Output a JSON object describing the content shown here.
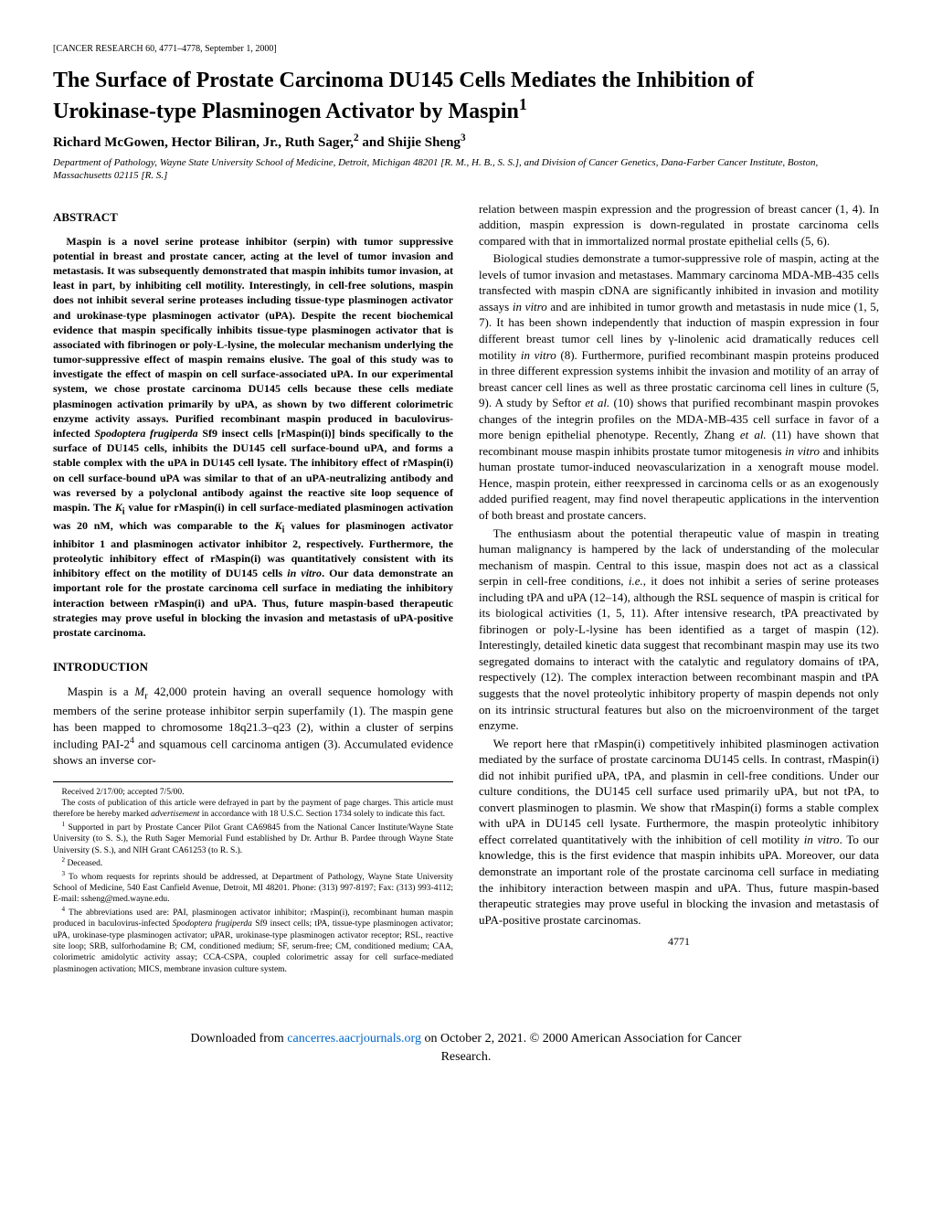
{
  "header_ref": "[CANCER RESEARCH 60, 4771–4778, September 1, 2000]",
  "title_line1": "The Surface of Prostate Carcinoma DU145 Cells Mediates the Inhibition of",
  "title_line2": "Urokinase-type Plasminogen Activator by Maspin",
  "title_sup": "1",
  "authors_html": "Richard McGowen, Hector Biliran, Jr., Ruth Sager,<sup>2</sup> and Shijie Sheng<sup>3</sup>",
  "affiliation": "Department of Pathology, Wayne State University School of Medicine, Detroit, Michigan 48201 [R. M., H. B., S. S.], and Division of Cancer Genetics, Dana-Farber Cancer Institute, Boston, Massachusetts 02115 [R. S.]",
  "abstract_heading": "ABSTRACT",
  "abstract_html": "Maspin is a novel serine protease inhibitor (serpin) with tumor suppressive potential in breast and prostate cancer, acting at the level of tumor invasion and metastasis. It was subsequently demonstrated that maspin inhibits tumor invasion, at least in part, by inhibiting cell motility. Interestingly, in cell-free solutions, maspin does not inhibit several serine proteases including tissue-type plasminogen activator and urokinase-type plasminogen activator (uPA). Despite the recent biochemical evidence that maspin specifically inhibits tissue-type plasminogen activator that is associated with fibrinogen or poly-L-lysine, the molecular mechanism underlying the tumor-suppressive effect of maspin remains elusive. The goal of this study was to investigate the effect of maspin on cell surface-associated uPA. In our experimental system, we chose prostate carcinoma DU145 cells because these cells mediate plasminogen activation primarily by uPA, as shown by two different colorimetric enzyme activity assays. Purified recombinant maspin produced in baculovirus-infected <i>Spodoptera frugiperda</i> Sf9 insect cells [rMaspin(i)] binds specifically to the surface of DU145 cells, inhibits the DU145 cell surface-bound uPA, and forms a stable complex with the uPA in DU145 cell lysate. The inhibitory effect of rMaspin(i) on cell surface-bound uPA was similar to that of an uPA-neutralizing antibody and was reversed by a polyclonal antibody against the reactive site loop sequence of maspin. The <i>K</i><sub>i</sub> value for rMaspin(i) in cell surface-mediated plasminogen activation was 20 nM, which was comparable to the <i>K</i><sub>i</sub> values for plasminogen activator inhibitor 1 and plasminogen activator inhibitor 2, respectively. Furthermore, the proteolytic inhibitory effect of rMaspin(i) was quantitatively consistent with its inhibitory effect on the motility of DU145 cells <i>in vitro</i>. Our data demonstrate an important role for the prostate carcinoma cell surface in mediating the inhibitory interaction between rMaspin(i) and uPA. Thus, future maspin-based therapeutic strategies may prove useful in blocking the invasion and metastasis of uPA-positive prostate carcinoma.",
  "introduction_heading": "INTRODUCTION",
  "intro_p1_html": "Maspin is a <i>M</i><sub>r</sub> 42,000 protein having an overall sequence homology with members of the serine protease inhibitor serpin superfamily (1). The maspin gene has been mapped to chromosome 18q21.3–q23 (2), within a cluster of serpins including PAI-2<sup>4</sup> and squamous cell carcinoma antigen (3). Accumulated evidence shows an inverse cor-",
  "right_p1_html": "relation between maspin expression and the progression of breast cancer (1, 4). In addition, maspin expression is down-regulated in prostate carcinoma cells compared with that in immortalized normal prostate epithelial cells (5, 6).",
  "right_p2_html": "Biological studies demonstrate a tumor-suppressive role of maspin, acting at the levels of tumor invasion and metastases. Mammary carcinoma MDA-MB-435 cells transfected with maspin cDNA are significantly inhibited in invasion and motility assays <i>in vitro</i> and are inhibited in tumor growth and metastasis in nude mice (1, 5, 7). It has been shown independently that induction of maspin expression in four different breast tumor cell lines by γ-linolenic acid dramatically reduces cell motility <i>in vitro</i> (8). Furthermore, purified recombinant maspin proteins produced in three different expression systems inhibit the invasion and motility of an array of breast cancer cell lines as well as three prostatic carcinoma cell lines in culture (5, 9). A study by Seftor <i>et al.</i> (10) shows that purified recombinant maspin provokes changes of the integrin profiles on the MDA-MB-435 cell surface in favor of a more benign epithelial phenotype. Recently, Zhang <i>et al.</i> (11) have shown that recombinant mouse maspin inhibits prostate tumor mitogenesis <i>in vitro</i> and inhibits human prostate tumor-induced neovascularization in a xenograft mouse model. Hence, maspin protein, either reexpressed in carcinoma cells or as an exogenously added purified reagent, may find novel therapeutic applications in the intervention of both breast and prostate cancers.",
  "right_p3_html": "The enthusiasm about the potential therapeutic value of maspin in treating human malignancy is hampered by the lack of understanding of the molecular mechanism of maspin. Central to this issue, maspin does not act as a classical serpin in cell-free conditions, <i>i.e.</i>, it does not inhibit a series of serine proteases including tPA and uPA (12–14), although the RSL sequence of maspin is critical for its biological activities (1, 5, 11). After intensive research, tPA preactivated by fibrinogen or poly-L-lysine has been identified as a target of maspin (12). Interestingly, detailed kinetic data suggest that recombinant maspin may use its two segregated domains to interact with the catalytic and regulatory domains of tPA, respectively (12). The complex interaction between recombinant maspin and tPA suggests that the novel proteolytic inhibitory property of maspin depends not only on its intrinsic structural features but also on the microenvironment of the target enzyme.",
  "right_p4_html": "We report here that rMaspin(i) competitively inhibited plasminogen activation mediated by the surface of prostate carcinoma DU145 cells. In contrast, rMaspin(i) did not inhibit purified uPA, tPA, and plasmin in cell-free conditions. Under our culture conditions, the DU145 cell surface used primarily uPA, but not tPA, to convert plasminogen to plasmin. We show that rMaspin(i) forms a stable complex with uPA in DU145 cell lysate. Furthermore, the maspin proteolytic inhibitory effect correlated quantitatively with the inhibition of cell motility <i>in vitro</i>. To our knowledge, this is the first evidence that maspin inhibits uPA. Moreover, our data demonstrate an important role of the prostate carcinoma cell surface in mediating the inhibitory interaction between maspin and uPA. Thus, future maspin-based therapeutic strategies may prove useful in blocking the invasion and metastasis of uPA-positive prostate carcinomas.",
  "footnotes": {
    "received": "Received 2/17/00; accepted 7/5/00.",
    "costs_html": "The costs of publication of this article were defrayed in part by the payment of page charges. This article must therefore be hereby marked <i>advertisement</i> in accordance with 18 U.S.C. Section 1734 solely to indicate this fact.",
    "fn1_html": "<sup>1</sup> Supported in part by Prostate Cancer Pilot Grant CA69845 from the National Cancer Institute/Wayne State University (to S. S.), the Ruth Sager Memorial Fund established by Dr. Arthur B. Pardee through Wayne State University (S. S.), and NIH Grant CA61253 (to R. S.).",
    "fn2_html": "<sup>2</sup> Deceased.",
    "fn3_html": "<sup>3</sup> To whom requests for reprints should be addressed, at Department of Pathology, Wayne State University School of Medicine, 540 East Canfield Avenue, Detroit, MI 48201. Phone: (313) 997-8197; Fax: (313) 993-4112; E-mail: ssheng@med.wayne.edu.",
    "fn4_html": "<sup>4</sup> The abbreviations used are: PAI, plasminogen activator inhibitor; rMaspin(i), recombinant human maspin produced in baculovirus-infected <i>Spodoptera frugiperda</i> Sf9 insect cells; tPA, tissue-type plasminogen activator; uPA, urokinase-type plasminogen activator; uPAR, urokinase-type plasminogen activator receptor; RSL, reactive site loop; SRB, sulforhodamine B; CM, conditioned medium; SF, serum-free; CM, conditioned medium; CAA, colorimetric amidolytic activity assay; CCA-CSPA, coupled colorimetric assay for cell surface-mediated plasminogen activation; MICS, membrane invasion culture system."
  },
  "page_number": "4771",
  "download_bar": {
    "prefix": "Downloaded from ",
    "link_text": "cancerres.aacrjournals.org",
    "suffix": " on October 2, 2021. © 2000 American Association for Cancer",
    "line2": "Research."
  }
}
